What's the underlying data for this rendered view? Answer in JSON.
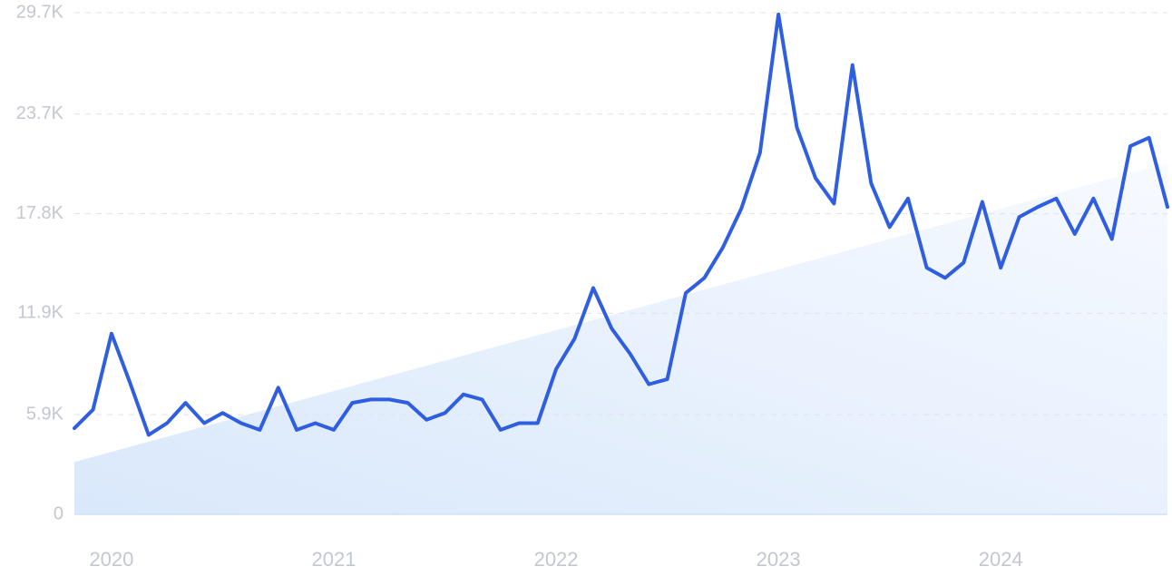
{
  "chart_data": {
    "type": "line",
    "x": [
      2019.833,
      2019.917,
      2020.0,
      2020.083,
      2020.167,
      2020.25,
      2020.333,
      2020.417,
      2020.5,
      2020.583,
      2020.667,
      2020.75,
      2020.833,
      2020.917,
      2021.0,
      2021.083,
      2021.167,
      2021.25,
      2021.333,
      2021.417,
      2021.5,
      2021.583,
      2021.667,
      2021.75,
      2021.833,
      2021.917,
      2022.0,
      2022.083,
      2022.167,
      2022.25,
      2022.333,
      2022.417,
      2022.5,
      2022.583,
      2022.667,
      2022.75,
      2022.833,
      2022.917,
      2023.0,
      2023.083,
      2023.167,
      2023.25,
      2023.333,
      2023.417,
      2023.5,
      2023.583,
      2023.667,
      2023.75,
      2023.833,
      2023.917,
      2024.0,
      2024.083,
      2024.167,
      2024.25,
      2024.333,
      2024.417,
      2024.5,
      2024.583,
      2024.667,
      2024.75
    ],
    "series": [
      {
        "color": "#2f5fe0",
        "values": [
          5100,
          6200,
          10700,
          7800,
          4700,
          5400,
          6600,
          5400,
          6000,
          5400,
          5000,
          7500,
          5000,
          5400,
          5000,
          6600,
          6800,
          6800,
          6600,
          5600,
          6000,
          7100,
          6800,
          5000,
          5400,
          5400,
          8600,
          10400,
          13400,
          11000,
          9500,
          7700,
          8000,
          13100,
          14000,
          15800,
          18100,
          21400,
          29600,
          22900,
          19900,
          18400,
          26600,
          19600,
          17000,
          18700,
          14600,
          14000,
          14900,
          18500,
          14600,
          17600,
          18200,
          18700,
          16600,
          18700,
          16300,
          21800,
          22300,
          18200
        ]
      }
    ],
    "trend_values": [
      3100,
      20800
    ],
    "xlim": [
      2019.833,
      2024.75
    ],
    "xticks": [
      2020,
      2021,
      2022,
      2023,
      2024
    ],
    "ylim": [
      0,
      29700
    ],
    "yticks": [
      0,
      {
        "value": 5900,
        "label": "5.9K"
      },
      {
        "value": 11900,
        "label": "11.9K"
      },
      {
        "value": 17800,
        "label": "17.8K"
      },
      {
        "value": 23700,
        "label": "23.7K"
      },
      {
        "value": 29700,
        "label": "29.7K"
      }
    ],
    "grid": true
  }
}
